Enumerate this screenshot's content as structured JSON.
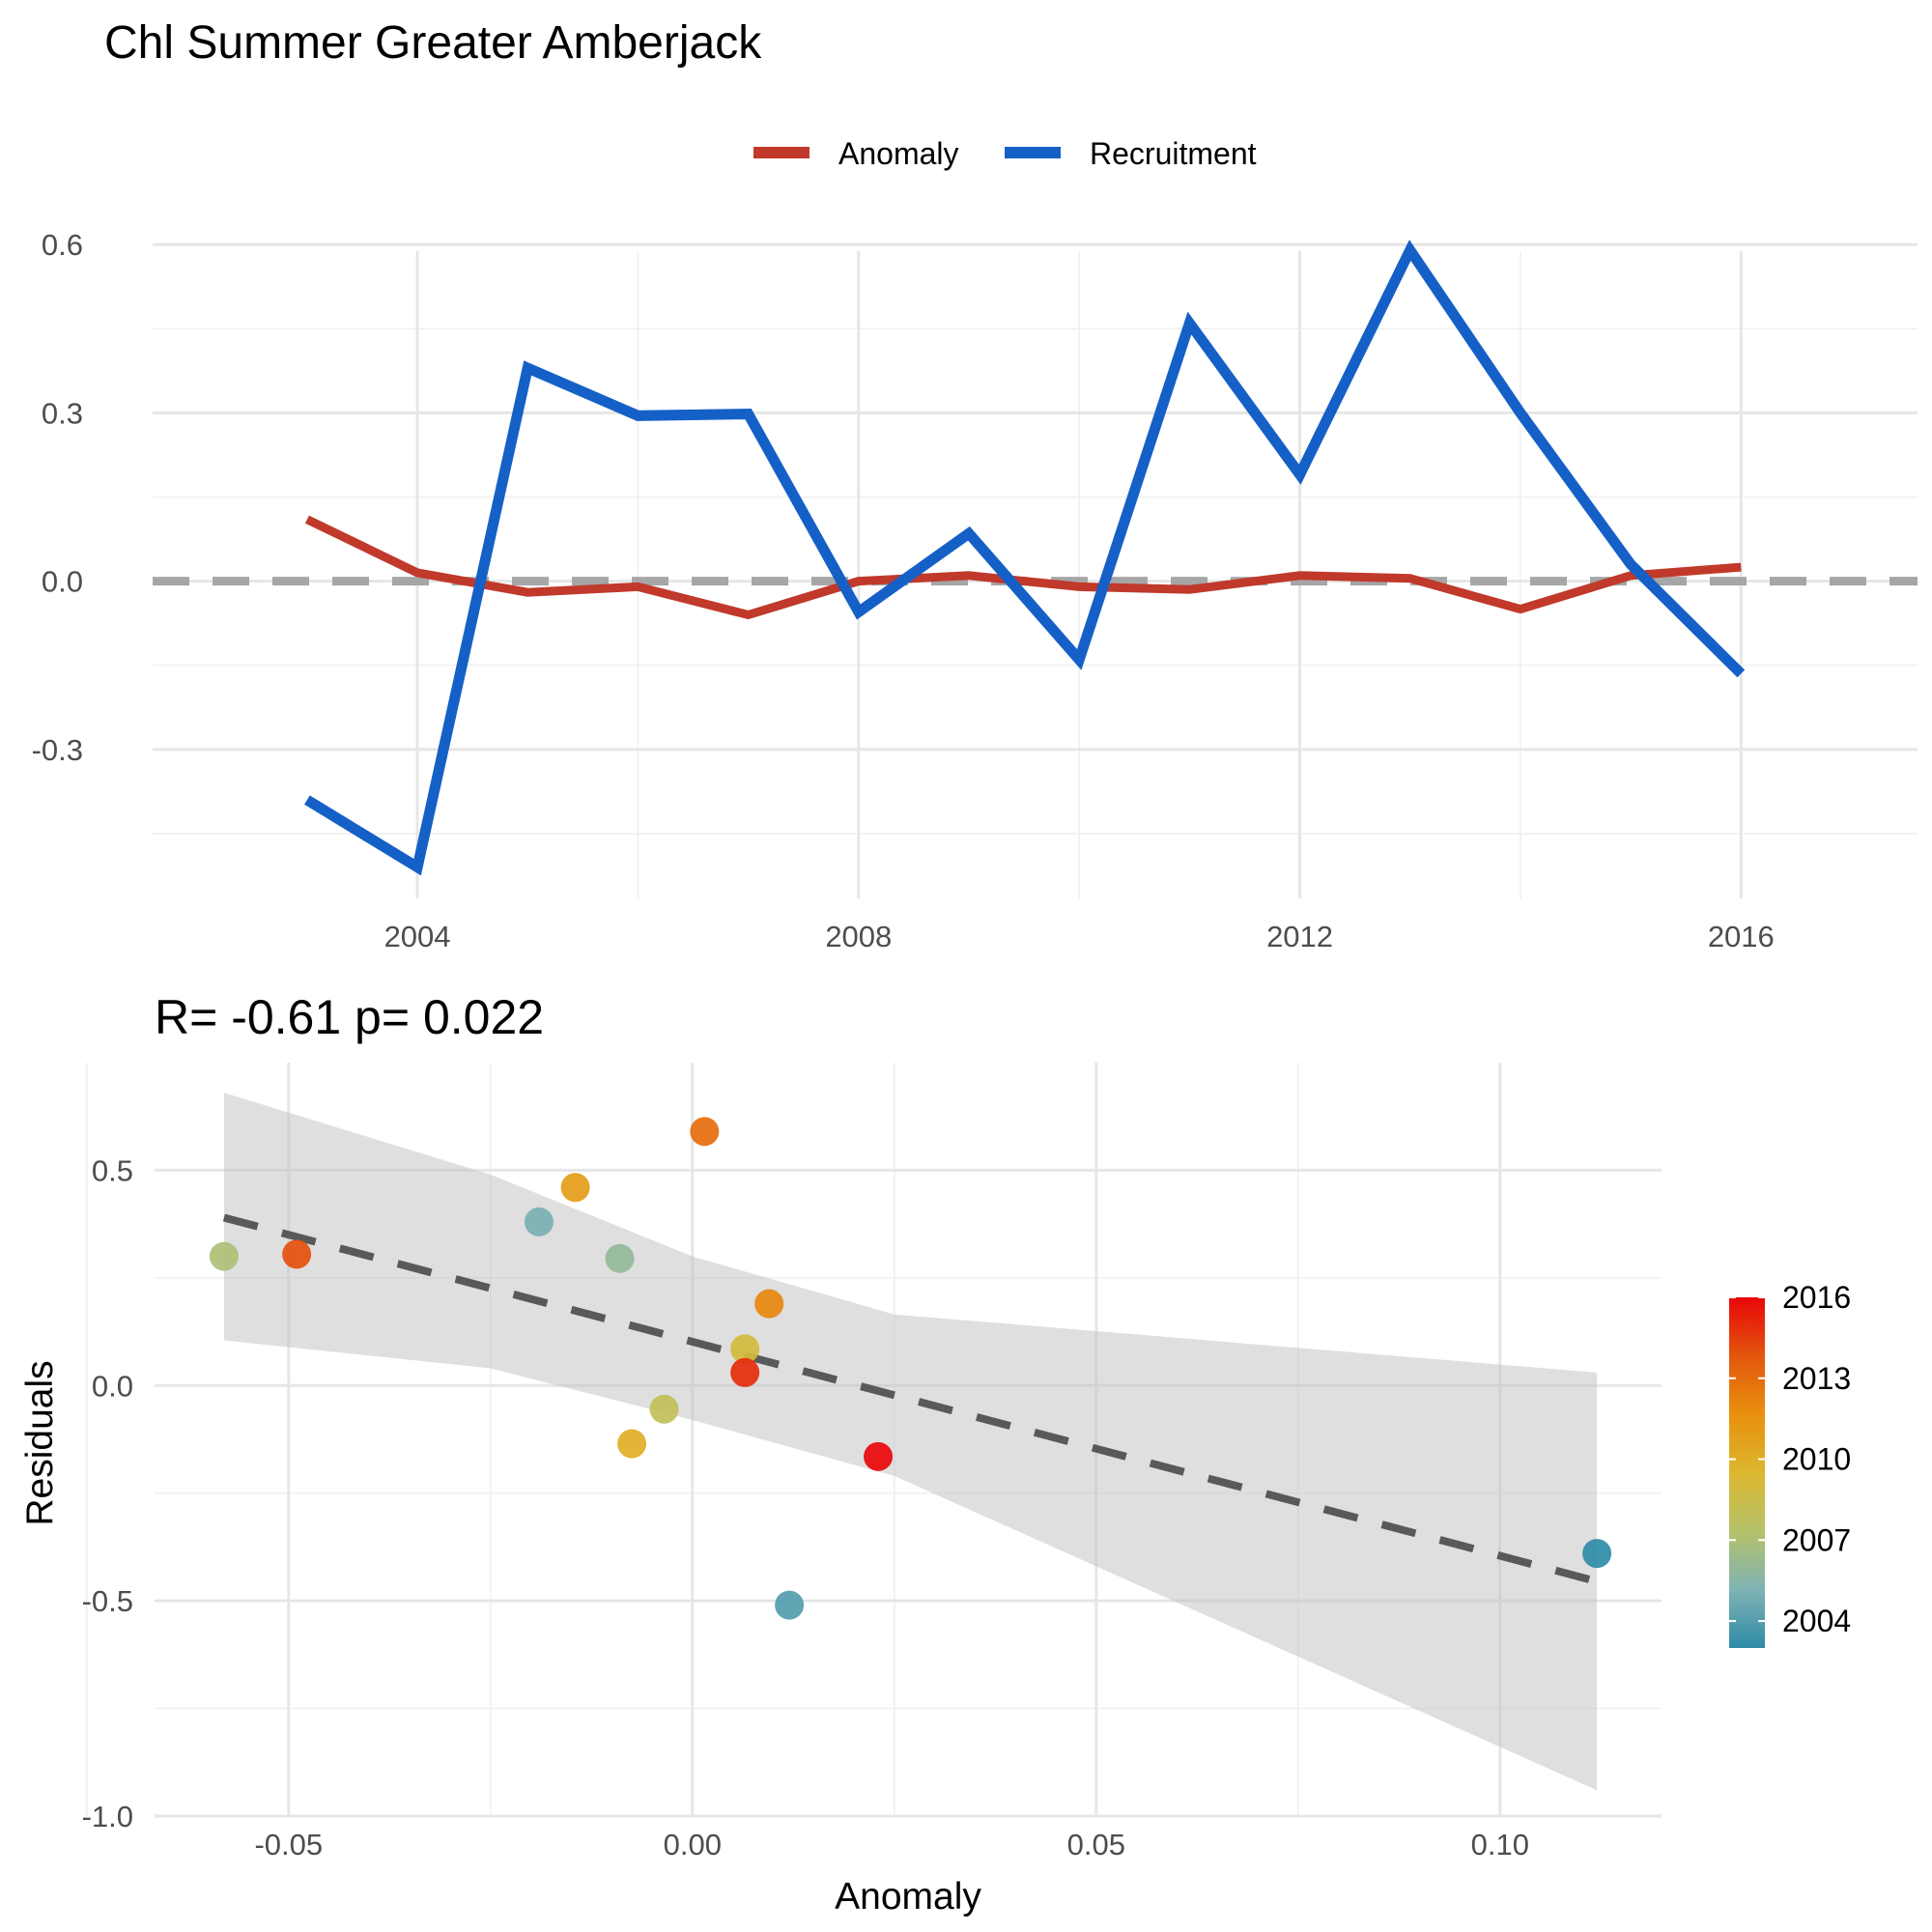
{
  "chart_data": [
    {
      "type": "line",
      "title": "Chl Summer Greater Amberjack",
      "legend_position": "top",
      "x": [
        2003,
        2004,
        2005,
        2006,
        2007,
        2008,
        2009,
        2010,
        2011,
        2012,
        2013,
        2014,
        2015,
        2016
      ],
      "x_ticks": [
        2004,
        2008,
        2012,
        2016
      ],
      "y_ticks": [
        -0.3,
        0.0,
        0.3,
        0.6
      ],
      "y_tick_labels": [
        "-0.3",
        "0.0",
        "0.3",
        "0.6"
      ],
      "xlim": [
        2001.6,
        2017.6
      ],
      "ylim": [
        -0.6,
        0.64
      ],
      "reference_line": 0,
      "grid": true,
      "series": [
        {
          "name": "Anomaly",
          "color": "#c0392b",
          "values": [
            0.11,
            0.015,
            -0.02,
            -0.01,
            -0.06,
            0.0,
            0.01,
            -0.01,
            -0.015,
            0.01,
            0.005,
            -0.05,
            0.01,
            0.025
          ]
        },
        {
          "name": "Recruitment",
          "color": "#1560c7",
          "values": [
            -0.39,
            -0.51,
            0.38,
            0.295,
            0.298,
            -0.055,
            0.085,
            -0.14,
            0.46,
            0.19,
            0.59,
            0.3,
            0.03,
            -0.165
          ]
        }
      ]
    },
    {
      "type": "scatter",
      "subtitle": "R= -0.61  p= 0.022",
      "xlabel": "Anomaly",
      "ylabel": "Residuals",
      "x_ticks": [
        -0.05,
        0.0,
        0.05,
        0.1
      ],
      "x_tick_labels": [
        "-0.05",
        "0.00",
        "0.05",
        "0.10"
      ],
      "y_ticks": [
        -1.0,
        -0.5,
        0.0,
        0.5
      ],
      "y_tick_labels": [
        "-1.0",
        "-0.5",
        "0.0",
        "0.5"
      ],
      "xlim": [
        -0.0666,
        0.12
      ],
      "ylim": [
        -1.0,
        0.75
      ],
      "grid": true,
      "points": [
        {
          "year": 2003,
          "x": 0.112,
          "y": -0.39
        },
        {
          "year": 2004,
          "x": 0.012,
          "y": -0.51
        },
        {
          "year": 2005,
          "x": -0.019,
          "y": 0.38
        },
        {
          "year": 2006,
          "x": -0.009,
          "y": 0.295
        },
        {
          "year": 2007,
          "x": -0.058,
          "y": 0.3
        },
        {
          "year": 2008,
          "x": -0.0035,
          "y": -0.055
        },
        {
          "year": 2009,
          "x": 0.0065,
          "y": 0.085
        },
        {
          "year": 2010,
          "x": -0.0075,
          "y": -0.135
        },
        {
          "year": 2011,
          "x": -0.0145,
          "y": 0.46
        },
        {
          "year": 2012,
          "x": 0.0095,
          "y": 0.19
        },
        {
          "year": 2013,
          "x": 0.0015,
          "y": 0.59
        },
        {
          "year": 2014,
          "x": -0.049,
          "y": 0.305
        },
        {
          "year": 2015,
          "x": 0.0065,
          "y": 0.03
        },
        {
          "year": 2016,
          "x": 0.023,
          "y": -0.165
        }
      ],
      "fit_line": {
        "x": [
          -0.058,
          0.112
        ],
        "y": [
          0.39,
          -0.455
        ]
      },
      "confidence_band": {
        "x": [
          -0.058,
          -0.025,
          0.0,
          0.025,
          0.112
        ],
        "upper": [
          0.68,
          0.49,
          0.3,
          0.165,
          0.03
        ],
        "lower": [
          0.105,
          0.04,
          -0.08,
          -0.21,
          -0.94
        ]
      },
      "colorbar": {
        "ticks": [
          2004,
          2007,
          2010,
          2013,
          2016
        ],
        "range": [
          2003,
          2016
        ],
        "stops": [
          "#2e8ba6",
          "#7fb3b4",
          "#b5c26a",
          "#dcb72e",
          "#e8900e",
          "#e3560d",
          "#e8060a"
        ]
      }
    }
  ]
}
